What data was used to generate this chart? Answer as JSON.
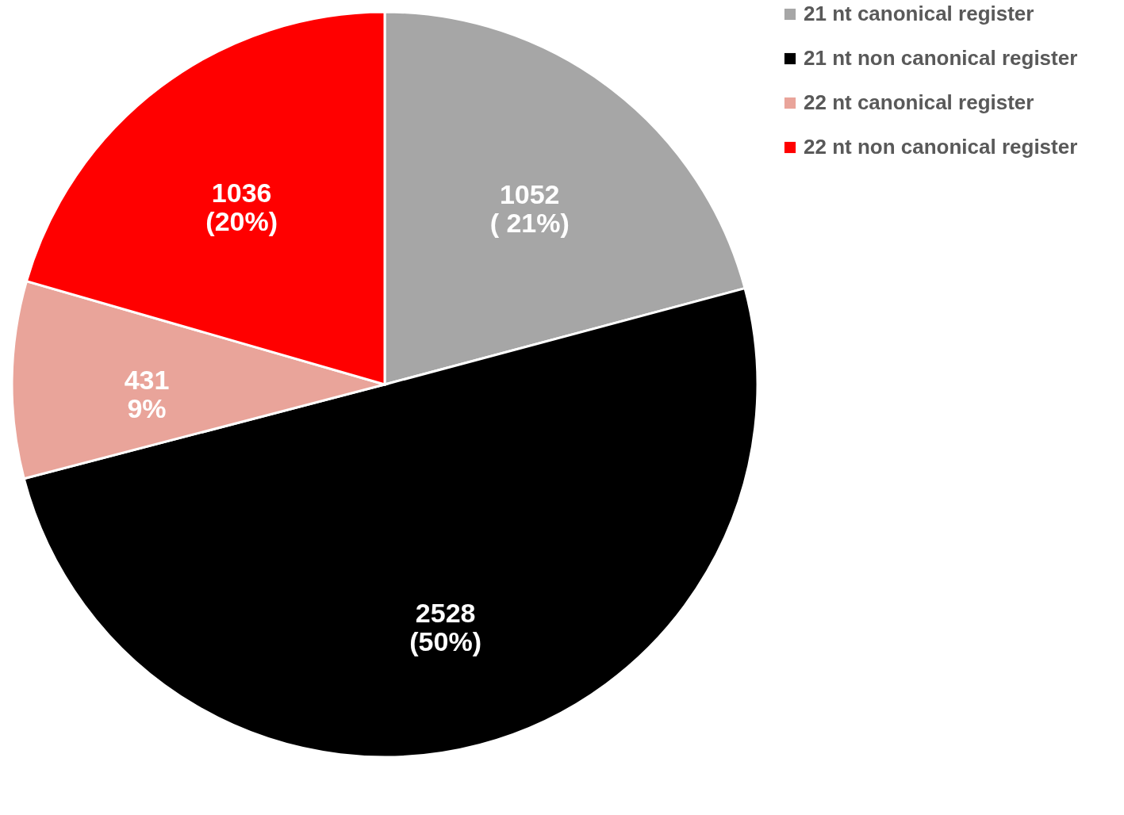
{
  "chart_data": {
    "type": "pie",
    "categories": [
      "21 nt canonical register",
      "21 nt non canonical register",
      "22 nt canonical register",
      "22 nt non canonical register"
    ],
    "values": [
      1052,
      2528,
      431,
      1036
    ],
    "colors": [
      "#a6a6a6",
      "#000000",
      "#e9a49a",
      "#ff0000"
    ],
    "value_labels": [
      "1052\n( 21%)",
      "2528\n(50%)",
      "431\n9%",
      "1036\n(20%)"
    ],
    "legend": "right"
  }
}
